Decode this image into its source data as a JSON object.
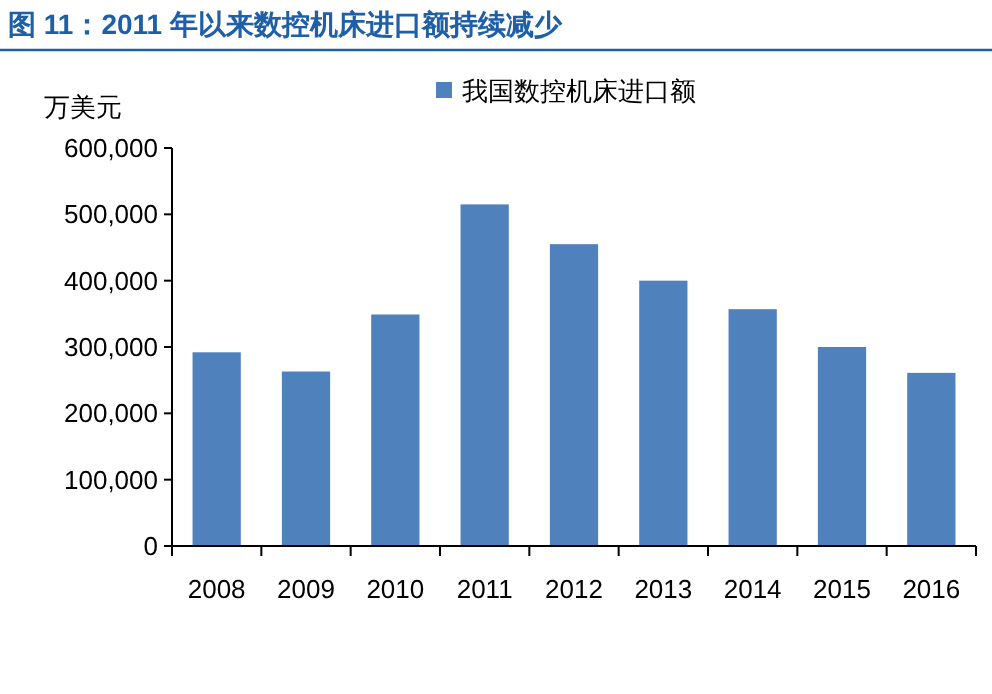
{
  "chart_data": {
    "type": "bar",
    "title": "图 11：2011 年以来数控机床进口额持续减少",
    "ylabel": "万美元",
    "categories": [
      "2008",
      "2009",
      "2010",
      "2011",
      "2012",
      "2013",
      "2014",
      "2015",
      "2016"
    ],
    "series": [
      {
        "name": "我国数控机床进口额",
        "color": "#4f81bd",
        "values": [
          292000,
          263000,
          349000,
          515000,
          455000,
          400000,
          357000,
          300000,
          261000
        ]
      }
    ],
    "ylim": [
      0,
      600000
    ],
    "yticks": [
      {
        "value": 0,
        "label": "0"
      },
      {
        "value": 100000,
        "label": "100,000"
      },
      {
        "value": 200000,
        "label": "200,000"
      },
      {
        "value": 300000,
        "label": "300,000"
      },
      {
        "value": 400000,
        "label": "400,000"
      },
      {
        "value": 500000,
        "label": "500,000"
      },
      {
        "value": 600000,
        "label": "600,000"
      }
    ],
    "legend": "top",
    "grid": false
  }
}
